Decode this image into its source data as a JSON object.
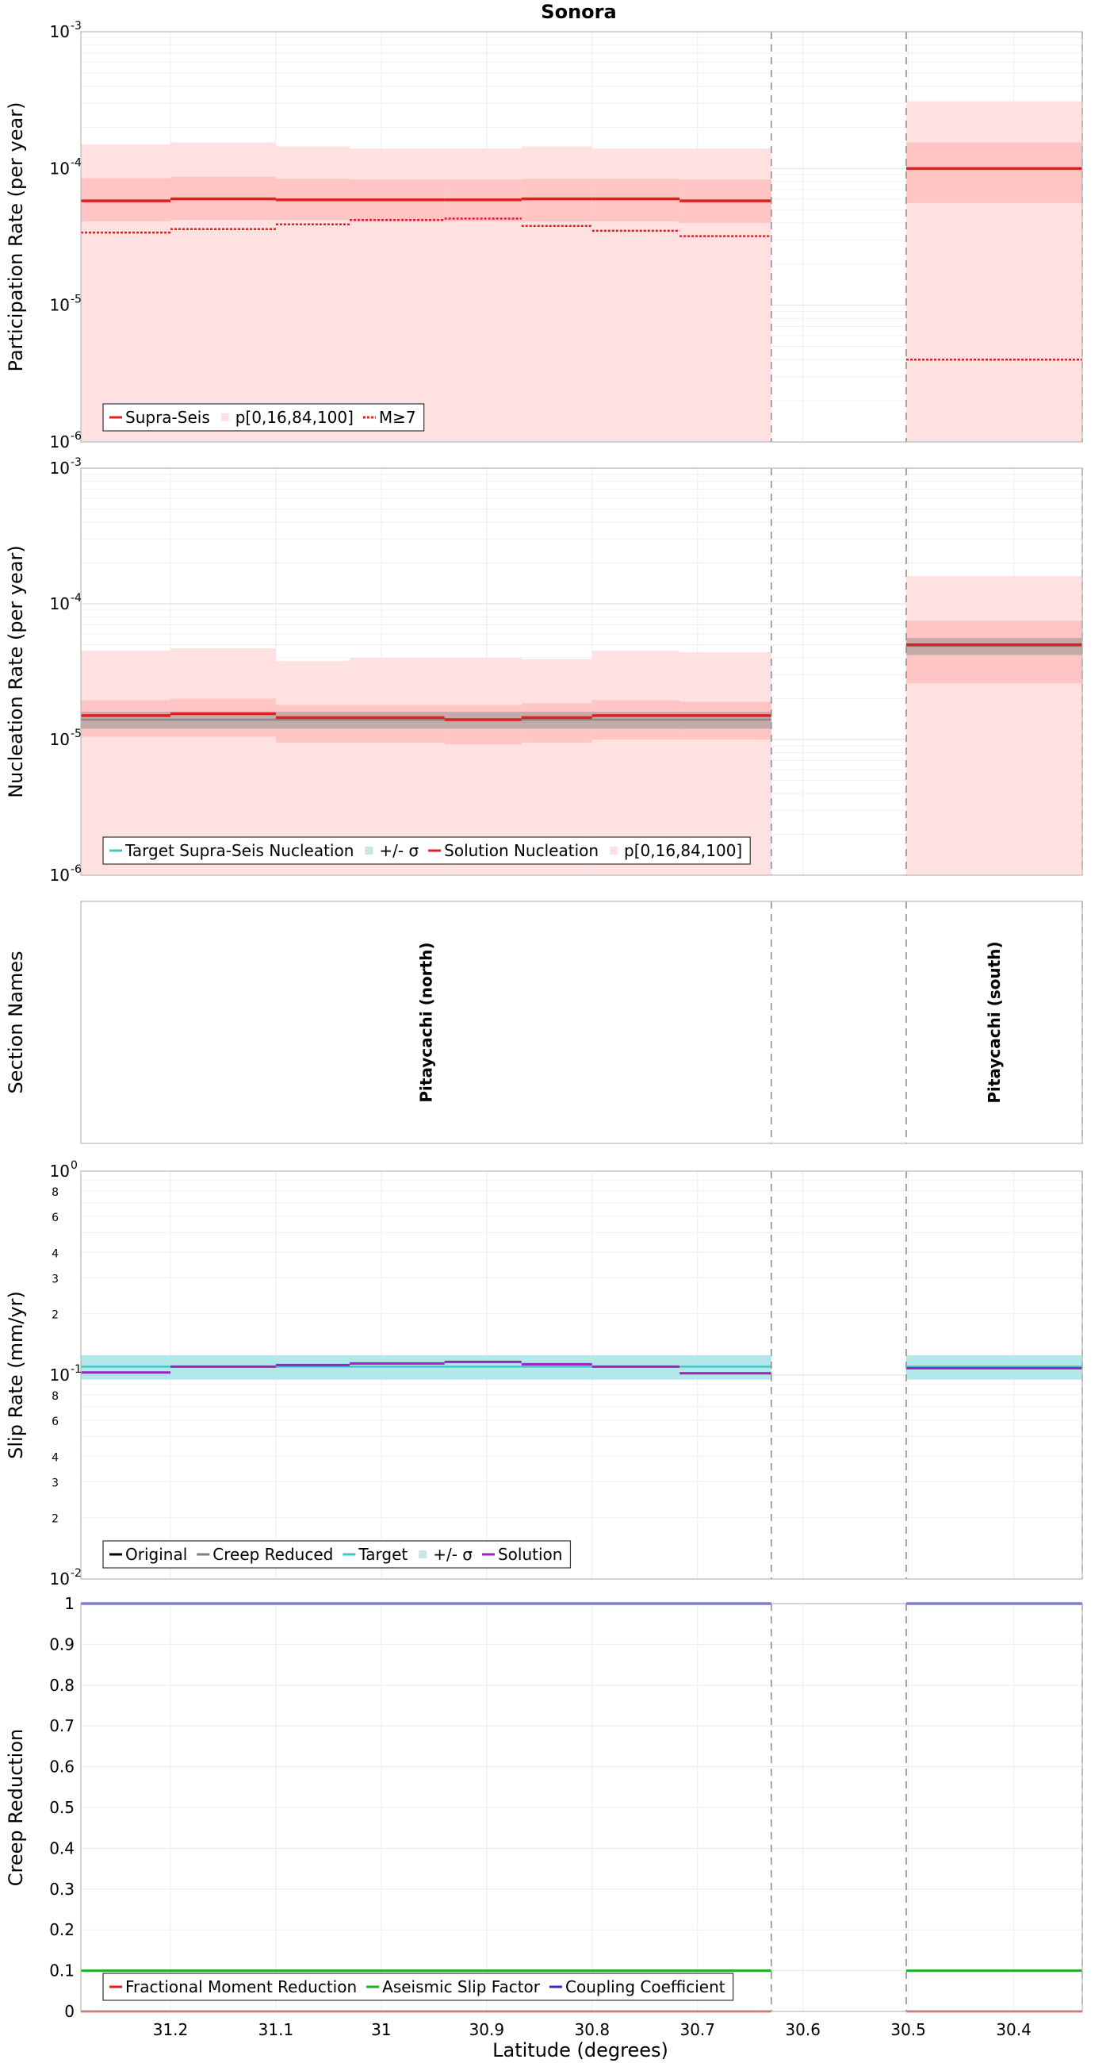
{
  "title": "Sonora",
  "xlabel": "Latitude (degrees)",
  "x_ticks": [
    "31.2",
    "31.1",
    "31",
    "30.9",
    "30.8",
    "30.7",
    "30.6",
    "30.5",
    "30.4"
  ],
  "x_tick_values": [
    31.2,
    31.1,
    31.0,
    30.9,
    30.8,
    30.7,
    30.6,
    30.5,
    30.4
  ],
  "xlim": [
    31.285,
    30.335
  ],
  "section_boundaries": [
    30.63,
    30.502,
    30.335
  ],
  "chart_data": [
    {
      "id": "participation",
      "type": "line",
      "ylabel": "Participation Rate (per year)",
      "yscale": "log",
      "ylim": [
        1e-06,
        0.001
      ],
      "y_ticks": [
        {
          "base": "10",
          "exp": "-6"
        },
        {
          "base": "10",
          "exp": "-5"
        },
        {
          "base": "10",
          "exp": "-4"
        },
        {
          "base": "10",
          "exp": "-3"
        }
      ],
      "legend": [
        "Supra-Seis",
        "p[0,16,84,100]",
        "M≥7"
      ],
      "legend_position": "bottom-left",
      "segments": [
        {
          "x0": 31.285,
          "x1": 31.2,
          "supra": 5.8e-05,
          "m7": 3.4e-05,
          "p16": 4.1e-05,
          "p84": 8.5e-05,
          "p100": 0.00015
        },
        {
          "x0": 31.2,
          "x1": 31.1,
          "supra": 6e-05,
          "m7": 3.6e-05,
          "p16": 4.2e-05,
          "p84": 8.7e-05,
          "p100": 0.000155
        },
        {
          "x0": 31.1,
          "x1": 31.03,
          "supra": 5.9e-05,
          "m7": 3.9e-05,
          "p16": 4.2e-05,
          "p84": 8.4e-05,
          "p100": 0.000145
        },
        {
          "x0": 31.03,
          "x1": 30.94,
          "supra": 5.9e-05,
          "m7": 4.2e-05,
          "p16": 4.1e-05,
          "p84": 8.3e-05,
          "p100": 0.00014
        },
        {
          "x0": 30.94,
          "x1": 30.867,
          "supra": 5.9e-05,
          "m7": 4.3e-05,
          "p16": 4.1e-05,
          "p84": 8.3e-05,
          "p100": 0.00014
        },
        {
          "x0": 30.867,
          "x1": 30.8,
          "supra": 6e-05,
          "m7": 3.8e-05,
          "p16": 4.1e-05,
          "p84": 8.4e-05,
          "p100": 0.000145
        },
        {
          "x0": 30.8,
          "x1": 30.717,
          "supra": 6e-05,
          "m7": 3.5e-05,
          "p16": 4.1e-05,
          "p84": 8.4e-05,
          "p100": 0.00014
        },
        {
          "x0": 30.717,
          "x1": 30.63,
          "supra": 5.8e-05,
          "m7": 3.2e-05,
          "p16": 4e-05,
          "p84": 8.3e-05,
          "p100": 0.00014
        },
        {
          "x0": 30.502,
          "x1": 30.335,
          "supra": 0.0001,
          "m7": 4e-06,
          "p16": 5.6e-05,
          "p84": 0.000155,
          "p100": 0.00031
        }
      ]
    },
    {
      "id": "nucleation",
      "type": "line",
      "ylabel": "Nucleation Rate (per year)",
      "yscale": "log",
      "ylim": [
        1e-06,
        0.001
      ],
      "y_ticks": [
        {
          "base": "10",
          "exp": "-6"
        },
        {
          "base": "10",
          "exp": "-5"
        },
        {
          "base": "10",
          "exp": "-4"
        },
        {
          "base": "10",
          "exp": "-3"
        }
      ],
      "legend": [
        "Target Supra-Seis Nucleation",
        "+/- σ",
        "Solution Nucleation",
        "p[0,16,84,100]"
      ],
      "legend_position": "bottom-left",
      "segments": [
        {
          "x0": 31.285,
          "x1": 31.2,
          "target": 1.4e-05,
          "sig_lo": 1.2e-05,
          "sig_hi": 1.6e-05,
          "sol": 1.5e-05,
          "p16": 1.05e-05,
          "p84": 1.95e-05,
          "p100": 4.5e-05
        },
        {
          "x0": 31.2,
          "x1": 31.1,
          "target": 1.4e-05,
          "sig_lo": 1.2e-05,
          "sig_hi": 1.6e-05,
          "sol": 1.55e-05,
          "p16": 1.05e-05,
          "p84": 2e-05,
          "p100": 4.7e-05
        },
        {
          "x0": 31.1,
          "x1": 31.03,
          "target": 1.4e-05,
          "sig_lo": 1.2e-05,
          "sig_hi": 1.6e-05,
          "sol": 1.45e-05,
          "p16": 9.5e-06,
          "p84": 1.8e-05,
          "p100": 3.8e-05
        },
        {
          "x0": 31.03,
          "x1": 30.94,
          "target": 1.4e-05,
          "sig_lo": 1.2e-05,
          "sig_hi": 1.6e-05,
          "sol": 1.45e-05,
          "p16": 9.5e-06,
          "p84": 1.8e-05,
          "p100": 4e-05
        },
        {
          "x0": 30.94,
          "x1": 30.867,
          "target": 1.4e-05,
          "sig_lo": 1.2e-05,
          "sig_hi": 1.6e-05,
          "sol": 1.4e-05,
          "p16": 9.2e-06,
          "p84": 1.8e-05,
          "p100": 4e-05
        },
        {
          "x0": 30.867,
          "x1": 30.8,
          "target": 1.4e-05,
          "sig_lo": 1.2e-05,
          "sig_hi": 1.6e-05,
          "sol": 1.45e-05,
          "p16": 9.5e-06,
          "p84": 1.85e-05,
          "p100": 3.9e-05
        },
        {
          "x0": 30.8,
          "x1": 30.717,
          "target": 1.4e-05,
          "sig_lo": 1.2e-05,
          "sig_hi": 1.6e-05,
          "sol": 1.5e-05,
          "p16": 1e-05,
          "p84": 1.95e-05,
          "p100": 4.5e-05
        },
        {
          "x0": 30.717,
          "x1": 30.63,
          "target": 1.4e-05,
          "sig_lo": 1.2e-05,
          "sig_hi": 1.6e-05,
          "sol": 1.5e-05,
          "p16": 1e-05,
          "p84": 1.9e-05,
          "p100": 4.4e-05
        },
        {
          "x0": 30.502,
          "x1": 30.335,
          "target": 4.9e-05,
          "sig_lo": 4.2e-05,
          "sig_hi": 5.6e-05,
          "sol": 5e-05,
          "p16": 2.6e-05,
          "p84": 7.5e-05,
          "p100": 0.00016
        }
      ]
    },
    {
      "id": "section-names",
      "type": "table",
      "ylabel": "Section Names",
      "sections": [
        {
          "name": "Pitaycachi (north)",
          "x0": 31.285,
          "x1": 30.63
        },
        {
          "name": "Pitaycachi (south)",
          "x0": 30.502,
          "x1": 30.335
        }
      ]
    },
    {
      "id": "slip-rate",
      "type": "line",
      "ylabel": "Slip Rate (mm/yr)",
      "yscale": "log",
      "ylim": [
        0.01,
        1
      ],
      "y_ticks": [
        {
          "base": "10",
          "exp": "-2"
        },
        {
          "base": "10",
          "exp": "-1"
        },
        {
          "base": "10",
          "exp": "0"
        }
      ],
      "y_minor_labels": [
        {
          "v": 0.02,
          "t": "2"
        },
        {
          "v": 0.03,
          "t": "3"
        },
        {
          "v": 0.04,
          "t": "4"
        },
        {
          "v": 0.06,
          "t": "6"
        },
        {
          "v": 0.08,
          "t": "8"
        },
        {
          "v": 0.2,
          "t": "2"
        },
        {
          "v": 0.3,
          "t": "3"
        },
        {
          "v": 0.4,
          "t": "4"
        },
        {
          "v": 0.6,
          "t": "6"
        },
        {
          "v": 0.8,
          "t": "8"
        }
      ],
      "legend": [
        "Original",
        "Creep Reduced",
        "Target",
        "+/- σ",
        "Solution"
      ],
      "legend_position": "bottom-left",
      "segments": [
        {
          "x0": 31.285,
          "x1": 31.2,
          "target": 0.11,
          "sig_lo": 0.095,
          "sig_hi": 0.125,
          "sol": 0.103
        },
        {
          "x0": 31.2,
          "x1": 31.1,
          "target": 0.11,
          "sig_lo": 0.095,
          "sig_hi": 0.125,
          "sol": 0.11
        },
        {
          "x0": 31.1,
          "x1": 31.03,
          "target": 0.11,
          "sig_lo": 0.095,
          "sig_hi": 0.125,
          "sol": 0.112
        },
        {
          "x0": 31.03,
          "x1": 30.94,
          "target": 0.11,
          "sig_lo": 0.095,
          "sig_hi": 0.125,
          "sol": 0.114
        },
        {
          "x0": 30.94,
          "x1": 30.867,
          "target": 0.11,
          "sig_lo": 0.095,
          "sig_hi": 0.125,
          "sol": 0.116
        },
        {
          "x0": 30.867,
          "x1": 30.8,
          "target": 0.11,
          "sig_lo": 0.095,
          "sig_hi": 0.125,
          "sol": 0.113
        },
        {
          "x0": 30.8,
          "x1": 30.717,
          "target": 0.11,
          "sig_lo": 0.095,
          "sig_hi": 0.125,
          "sol": 0.11
        },
        {
          "x0": 30.717,
          "x1": 30.63,
          "target": 0.11,
          "sig_lo": 0.095,
          "sig_hi": 0.125,
          "sol": 0.102
        },
        {
          "x0": 30.502,
          "x1": 30.335,
          "target": 0.11,
          "sig_lo": 0.095,
          "sig_hi": 0.125,
          "sol": 0.108
        }
      ]
    },
    {
      "id": "creep-reduction",
      "type": "line",
      "ylabel": "Creep Reduction",
      "yscale": "linear",
      "ylim": [
        0,
        1
      ],
      "y_ticks": [
        "0",
        "0.1",
        "0.2",
        "0.3",
        "0.4",
        "0.5",
        "0.6",
        "0.7",
        "0.8",
        "0.9",
        "1"
      ],
      "legend": [
        "Fractional Moment Reduction",
        "Aseismic Slip Factor",
        "Coupling Coefficient"
      ],
      "legend_position": "bottom-left",
      "segments": [
        {
          "x0": 31.285,
          "x1": 30.63,
          "fractional": 0.0,
          "aseismic": 0.1,
          "coupling": 1.0
        },
        {
          "x0": 30.502,
          "x1": 30.335,
          "fractional": 0.0,
          "aseismic": 0.1,
          "coupling": 1.0
        }
      ]
    }
  ],
  "colors": {
    "red": "#e02020",
    "pink_light": "#ffe1e1",
    "pink_mid": "#ffc4c4",
    "grey": "#a8a8a8",
    "cyan": "#3ec8cc",
    "cyan_light": "#b3e8ea",
    "purple": "#a020c0",
    "green": "#20b020",
    "blue": "#3030c0",
    "black": "#000000",
    "creep_grey": "#808080"
  }
}
